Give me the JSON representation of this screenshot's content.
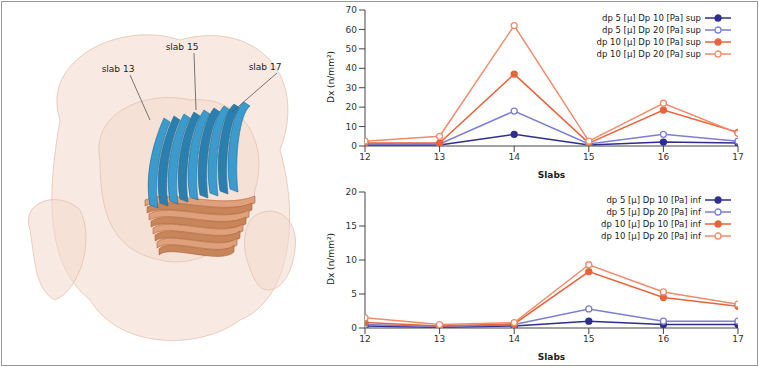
{
  "illustration": {
    "labels": [
      "slab 13",
      "slab 15",
      "slab 17"
    ]
  },
  "chart_data": [
    {
      "type": "line",
      "x": [
        12,
        13,
        14,
        15,
        16,
        17
      ],
      "xlim": [
        12,
        17
      ],
      "xticks": [
        12,
        13,
        14,
        15,
        16,
        17
      ],
      "ylim": [
        0,
        70
      ],
      "yticks": [
        0,
        10,
        20,
        30,
        40,
        50,
        60,
        70
      ],
      "x_label": "Slabs",
      "y_label": "Dx (n/mm²)",
      "legend": "upper right",
      "grid": false,
      "series": [
        {
          "name": "dp 5 [µ] Dp 10 [Pa] sup",
          "color": "#2e2e8f",
          "marker": "circle",
          "values": [
            0.5,
            0.5,
            6,
            0.5,
            2,
            1.5
          ]
        },
        {
          "name": "dp 5 [µ] Dp 20 [Pa] sup",
          "color": "#7d7dd2",
          "marker": "open_circle",
          "values": [
            1,
            1,
            18,
            1,
            6,
            2.5
          ]
        },
        {
          "name": "dp 10 [µ] Dp 10 [Pa] sup",
          "color": "#e8633a",
          "marker": "circle",
          "values": [
            1.5,
            1.5,
            37,
            1.5,
            18.5,
            7
          ]
        },
        {
          "name": "dp 10 [µ] Dp 20 [Pa] sup",
          "color": "#f28a6b",
          "marker": "open_circle",
          "values": [
            2.5,
            5,
            62,
            2.5,
            22,
            6.5
          ]
        }
      ]
    },
    {
      "type": "line",
      "x": [
        12,
        13,
        14,
        15,
        16,
        17
      ],
      "xlim": [
        12,
        17
      ],
      "xticks": [
        12,
        13,
        14,
        15,
        16,
        17
      ],
      "ylim": [
        0,
        20
      ],
      "yticks": [
        0,
        5,
        10,
        15,
        20
      ],
      "x_label": "Slabs",
      "y_label": "Dx (n/mm²)",
      "legend": "upper right",
      "grid": false,
      "series": [
        {
          "name": "dp 5 [µ] Dp 10 [Pa] inf",
          "color": "#2e2e8f",
          "marker": "circle",
          "values": [
            0.3,
            0.1,
            0.3,
            1,
            0.5,
            0.5
          ]
        },
        {
          "name": "dp 5 [µ] Dp 20 [Pa] inf",
          "color": "#7d7dd2",
          "marker": "open_circle",
          "values": [
            0.5,
            0.2,
            0.5,
            2.8,
            1,
            1
          ]
        },
        {
          "name": "dp 10 [µ] Dp 10 [Pa] inf",
          "color": "#e8633a",
          "marker": "circle",
          "values": [
            0.8,
            0.3,
            0.6,
            8.3,
            4.5,
            3.2
          ]
        },
        {
          "name": "dp 10 [µ] Dp 20 [Pa] inf",
          "color": "#f28a6b",
          "marker": "open_circle",
          "values": [
            1.5,
            0.5,
            0.8,
            9.3,
            5.3,
            3.5
          ]
        }
      ]
    }
  ]
}
